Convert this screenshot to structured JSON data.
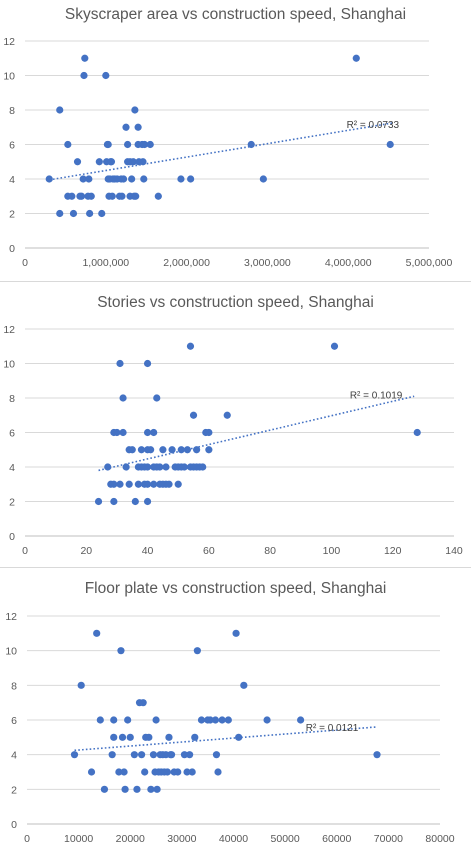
{
  "chart_data": [
    {
      "type": "scatter",
      "title": "Skyscraper area vs construction speed, Shanghai",
      "xlabel": "",
      "ylabel": "",
      "xlim": [
        0,
        5000000
      ],
      "ylim": [
        0,
        12
      ],
      "x_ticks": [
        0,
        1000000,
        2000000,
        3000000,
        4000000,
        5000000
      ],
      "x_tick_labels": [
        "0",
        "1,000,000",
        "2,000,000",
        "3,000,000",
        "4,000,000",
        "5,000,000"
      ],
      "y_ticks": [
        0,
        2,
        4,
        6,
        8,
        10,
        12
      ],
      "y_tick_labels": [
        "0",
        "2",
        "4",
        "6",
        "8",
        "10",
        "12"
      ],
      "grid": "horizontal",
      "marker_color": "#4472c4",
      "trendline": {
        "type": "linear",
        "x_range": [
          300000,
          4550000
        ],
        "y_range": [
          3.95,
          7.25
        ],
        "r2_label": "R² = 0.0733",
        "r2_label_pos": [
          3980000,
          7.2
        ]
      },
      "points": [
        [
          300000,
          4
        ],
        [
          430000,
          2
        ],
        [
          430000,
          8
        ],
        [
          530000,
          6
        ],
        [
          530000,
          3
        ],
        [
          580000,
          3
        ],
        [
          600000,
          2
        ],
        [
          650000,
          5
        ],
        [
          680000,
          3
        ],
        [
          700000,
          3
        ],
        [
          720000,
          4
        ],
        [
          730000,
          10
        ],
        [
          740000,
          11
        ],
        [
          780000,
          3
        ],
        [
          800000,
          2
        ],
        [
          790000,
          4
        ],
        [
          820000,
          3
        ],
        [
          950000,
          2
        ],
        [
          920000,
          5
        ],
        [
          1000000,
          10
        ],
        [
          1020000,
          6
        ],
        [
          1010000,
          5
        ],
        [
          1030000,
          6
        ],
        [
          1030000,
          4
        ],
        [
          1040000,
          3
        ],
        [
          1050000,
          4
        ],
        [
          1060000,
          5
        ],
        [
          1070000,
          5
        ],
        [
          1080000,
          3
        ],
        [
          1090000,
          4
        ],
        [
          1110000,
          4
        ],
        [
          1140000,
          4
        ],
        [
          1170000,
          3
        ],
        [
          1190000,
          4
        ],
        [
          1200000,
          3
        ],
        [
          1220000,
          4
        ],
        [
          1250000,
          7
        ],
        [
          1270000,
          6
        ],
        [
          1270000,
          5
        ],
        [
          1300000,
          5
        ],
        [
          1300000,
          3
        ],
        [
          1320000,
          4
        ],
        [
          1340000,
          5
        ],
        [
          1350000,
          3
        ],
        [
          1360000,
          8
        ],
        [
          1370000,
          3
        ],
        [
          1400000,
          7
        ],
        [
          1400000,
          6
        ],
        [
          1410000,
          5
        ],
        [
          1450000,
          6
        ],
        [
          1460000,
          5
        ],
        [
          1470000,
          4
        ],
        [
          1480000,
          6
        ],
        [
          1550000,
          6
        ],
        [
          1650000,
          3
        ],
        [
          1930000,
          4
        ],
        [
          2050000,
          4
        ],
        [
          2800000,
          6
        ],
        [
          2950000,
          4
        ],
        [
          4100000,
          11
        ],
        [
          4520000,
          6
        ]
      ]
    },
    {
      "type": "scatter",
      "title": "Stories vs construction speed, Shanghai",
      "xlabel": "",
      "ylabel": "",
      "xlim": [
        0,
        140
      ],
      "ylim": [
        0,
        12
      ],
      "x_ticks": [
        0,
        20,
        40,
        60,
        80,
        100,
        120,
        140
      ],
      "x_tick_labels": [
        "0",
        "20",
        "40",
        "60",
        "80",
        "100",
        "120",
        "140"
      ],
      "y_ticks": [
        0,
        2,
        4,
        6,
        8,
        10,
        12
      ],
      "y_tick_labels": [
        "0",
        "2",
        "4",
        "6",
        "8",
        "10",
        "12"
      ],
      "grid": "horizontal",
      "marker_color": "#4472c4",
      "trendline": {
        "type": "linear",
        "x_range": [
          24,
          127
        ],
        "y_range": [
          3.8,
          8.1
        ],
        "r2_label": "R² = 0.1019",
        "r2_label_pos": [
          106,
          8.2
        ]
      },
      "points": [
        [
          24,
          2
        ],
        [
          27,
          4
        ],
        [
          28,
          3
        ],
        [
          29,
          6
        ],
        [
          29,
          3
        ],
        [
          29,
          2
        ],
        [
          30,
          6
        ],
        [
          31,
          10
        ],
        [
          32,
          6
        ],
        [
          31,
          3
        ],
        [
          32,
          8
        ],
        [
          33,
          4
        ],
        [
          34,
          5
        ],
        [
          35,
          5
        ],
        [
          34,
          3
        ],
        [
          36,
          2
        ],
        [
          37,
          4
        ],
        [
          37,
          3
        ],
        [
          38,
          5
        ],
        [
          38,
          4
        ],
        [
          39,
          4
        ],
        [
          39,
          3
        ],
        [
          40,
          10
        ],
        [
          40,
          6
        ],
        [
          40,
          5
        ],
        [
          40,
          4
        ],
        [
          40,
          3
        ],
        [
          40,
          2
        ],
        [
          41,
          5
        ],
        [
          42,
          6
        ],
        [
          42,
          4
        ],
        [
          42,
          3
        ],
        [
          43,
          8
        ],
        [
          43,
          4
        ],
        [
          44,
          4
        ],
        [
          44,
          3
        ],
        [
          45,
          5
        ],
        [
          45,
          3
        ],
        [
          46,
          4
        ],
        [
          46,
          3
        ],
        [
          47,
          3
        ],
        [
          48,
          5
        ],
        [
          49,
          4
        ],
        [
          50,
          4
        ],
        [
          50,
          3
        ],
        [
          51,
          5
        ],
        [
          51,
          4
        ],
        [
          52,
          4
        ],
        [
          53,
          5
        ],
        [
          54,
          11
        ],
        [
          54,
          4
        ],
        [
          55,
          7
        ],
        [
          55,
          4
        ],
        [
          56,
          5
        ],
        [
          56,
          4
        ],
        [
          57,
          4
        ],
        [
          58,
          4
        ],
        [
          59,
          6
        ],
        [
          60,
          6
        ],
        [
          60,
          5
        ],
        [
          66,
          7
        ],
        [
          101,
          11
        ],
        [
          128,
          6
        ]
      ]
    },
    {
      "type": "scatter",
      "title": "Floor plate vs construction speed, Shanghai",
      "xlabel": "",
      "ylabel": "",
      "xlim": [
        0,
        80000
      ],
      "ylim": [
        0,
        12
      ],
      "x_ticks": [
        0,
        10000,
        20000,
        30000,
        40000,
        50000,
        60000,
        70000,
        80000
      ],
      "x_tick_labels": [
        "0",
        "10000",
        "20000",
        "30000",
        "40000",
        "50000",
        "60000",
        "70000",
        "80000"
      ],
      "y_ticks": [
        0,
        2,
        4,
        6,
        8,
        10,
        12
      ],
      "y_tick_labels": [
        "0",
        "2",
        "4",
        "6",
        "8",
        "10",
        "12"
      ],
      "grid": "horizontal",
      "marker_color": "#4472c4",
      "trendline": {
        "type": "linear",
        "x_range": [
          9200,
          67800
        ],
        "y_range": [
          4.25,
          5.6
        ],
        "r2_label": "R² = 0.0121",
        "r2_label_pos": [
          54000,
          5.6
        ]
      },
      "points": [
        [
          9200,
          4
        ],
        [
          10500,
          8
        ],
        [
          12500,
          3
        ],
        [
          13500,
          11
        ],
        [
          14200,
          6
        ],
        [
          15000,
          2
        ],
        [
          16500,
          4
        ],
        [
          16800,
          5
        ],
        [
          16800,
          6
        ],
        [
          17800,
          3
        ],
        [
          18200,
          10
        ],
        [
          18500,
          5
        ],
        [
          18800,
          3
        ],
        [
          19000,
          2
        ],
        [
          19500,
          6
        ],
        [
          20000,
          5
        ],
        [
          20800,
          4
        ],
        [
          21300,
          2
        ],
        [
          21800,
          7
        ],
        [
          22200,
          4
        ],
        [
          22500,
          7
        ],
        [
          22800,
          3
        ],
        [
          23000,
          5
        ],
        [
          23600,
          5
        ],
        [
          24000,
          2
        ],
        [
          24500,
          4
        ],
        [
          24800,
          3
        ],
        [
          25000,
          6
        ],
        [
          25200,
          2
        ],
        [
          25500,
          3
        ],
        [
          25800,
          4
        ],
        [
          26000,
          3
        ],
        [
          26300,
          4
        ],
        [
          26600,
          3
        ],
        [
          26900,
          4
        ],
        [
          27200,
          3
        ],
        [
          27500,
          5
        ],
        [
          27800,
          4
        ],
        [
          28000,
          4
        ],
        [
          28500,
          3
        ],
        [
          29200,
          3
        ],
        [
          30500,
          4
        ],
        [
          31000,
          3
        ],
        [
          31500,
          4
        ],
        [
          32000,
          3
        ],
        [
          32500,
          5
        ],
        [
          33000,
          10
        ],
        [
          33800,
          6
        ],
        [
          35000,
          6
        ],
        [
          35500,
          6
        ],
        [
          36500,
          6
        ],
        [
          36700,
          4
        ],
        [
          37000,
          3
        ],
        [
          37800,
          6
        ],
        [
          39000,
          6
        ],
        [
          40500,
          11
        ],
        [
          41000,
          5
        ],
        [
          42000,
          8
        ],
        [
          46500,
          6
        ],
        [
          53000,
          6
        ],
        [
          67800,
          4
        ]
      ]
    }
  ]
}
